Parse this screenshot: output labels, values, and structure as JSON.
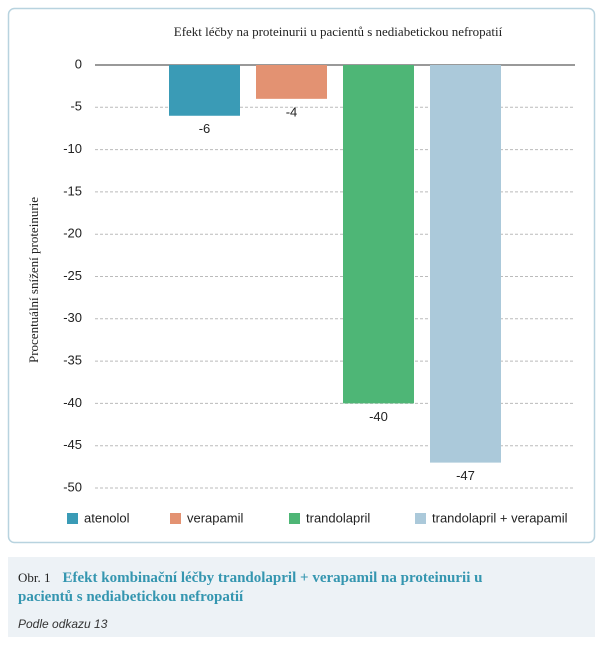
{
  "chart_data": {
    "type": "bar",
    "title": "Efekt léčby na proteinurii u pacientů s nediabetickou nefropatií",
    "y_label": "Procentuální snížení proteinurie",
    "categories": [
      "atenolol",
      "verapamil",
      "trandolapril",
      "trandolapril + verapamil"
    ],
    "values": [
      -6,
      -4,
      -40,
      -47
    ],
    "colors": [
      "#3a9bb6",
      "#e39272",
      "#4eb676",
      "#abc9da"
    ],
    "ylim": [
      -50,
      0
    ],
    "yticks": [
      0,
      -5,
      -10,
      -15,
      -20,
      -25,
      -30,
      -35,
      -40,
      -45,
      -50
    ],
    "grid": true,
    "legend": "bottom"
  },
  "caption": {
    "label": "Obr. 1",
    "title": "Efekt kombinační léčby trandolapril + verapamil na proteinurii u pacientů s nediabetickou nefropatií",
    "source": "Podle odkazu 13"
  }
}
